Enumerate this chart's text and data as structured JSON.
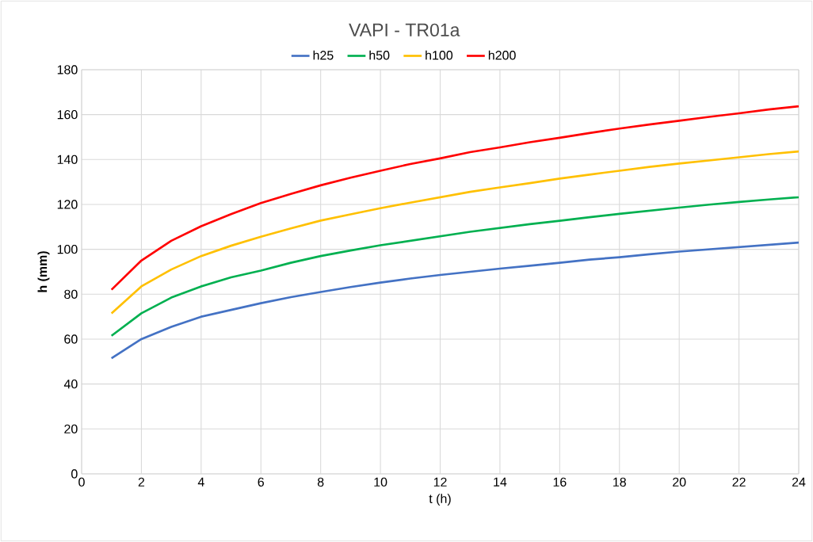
{
  "chart_data": {
    "type": "line",
    "title": "VAPI - TR01a",
    "xlabel": "t (h)",
    "ylabel": "**h (mm)**",
    "x": [
      1,
      2,
      3,
      4,
      5,
      6,
      7,
      8,
      9,
      10,
      11,
      12,
      13,
      14,
      15,
      16,
      17,
      18,
      19,
      20,
      21,
      22,
      23,
      24
    ],
    "series": [
      {
        "name": "h25",
        "color": "#4472c4",
        "values": [
          51.5,
          60,
          65.5,
          70,
          73,
          76,
          78.7,
          81,
          83.2,
          85.2,
          87,
          88.6,
          90,
          91.4,
          92.7,
          94,
          95.4,
          96.5,
          97.8,
          99,
          100,
          101,
          102,
          103
        ]
      },
      {
        "name": "h50",
        "color": "#00b050",
        "values": [
          61.5,
          71.5,
          78.5,
          83.5,
          87.5,
          90.5,
          94,
          97,
          99.5,
          101.8,
          103.8,
          105.8,
          107.8,
          109.5,
          111.2,
          112.7,
          114.3,
          115.8,
          117.2,
          118.6,
          119.9,
          121.1,
          122.2,
          123.2
        ]
      },
      {
        "name": "h100",
        "color": "#ffc000",
        "values": [
          71.5,
          83.5,
          91,
          97,
          101.6,
          105.6,
          109.3,
          112.8,
          115.6,
          118.3,
          120.8,
          123.2,
          125.6,
          127.6,
          129.5,
          131.5,
          133.3,
          135,
          136.7,
          138.2,
          139.6,
          141,
          142.4,
          143.6
        ]
      },
      {
        "name": "h200",
        "color": "#ff0000",
        "values": [
          82,
          95,
          103.8,
          110.3,
          115.7,
          120.6,
          124.7,
          128.5,
          131.9,
          135,
          138,
          140.5,
          143.3,
          145.4,
          147.7,
          149.7,
          151.8,
          153.8,
          155.6,
          157.3,
          159,
          160.6,
          162.3,
          163.7
        ]
      }
    ],
    "xlim": [
      0,
      24
    ],
    "xticks": [
      0,
      2,
      4,
      6,
      8,
      10,
      12,
      14,
      16,
      18,
      20,
      22,
      24
    ],
    "ylim": [
      0,
      180
    ],
    "yticks": [
      0,
      20,
      40,
      60,
      80,
      100,
      120,
      140,
      160,
      180
    ],
    "grid": true,
    "legend": "top",
    "marker": "none",
    "line_style": "solid"
  }
}
